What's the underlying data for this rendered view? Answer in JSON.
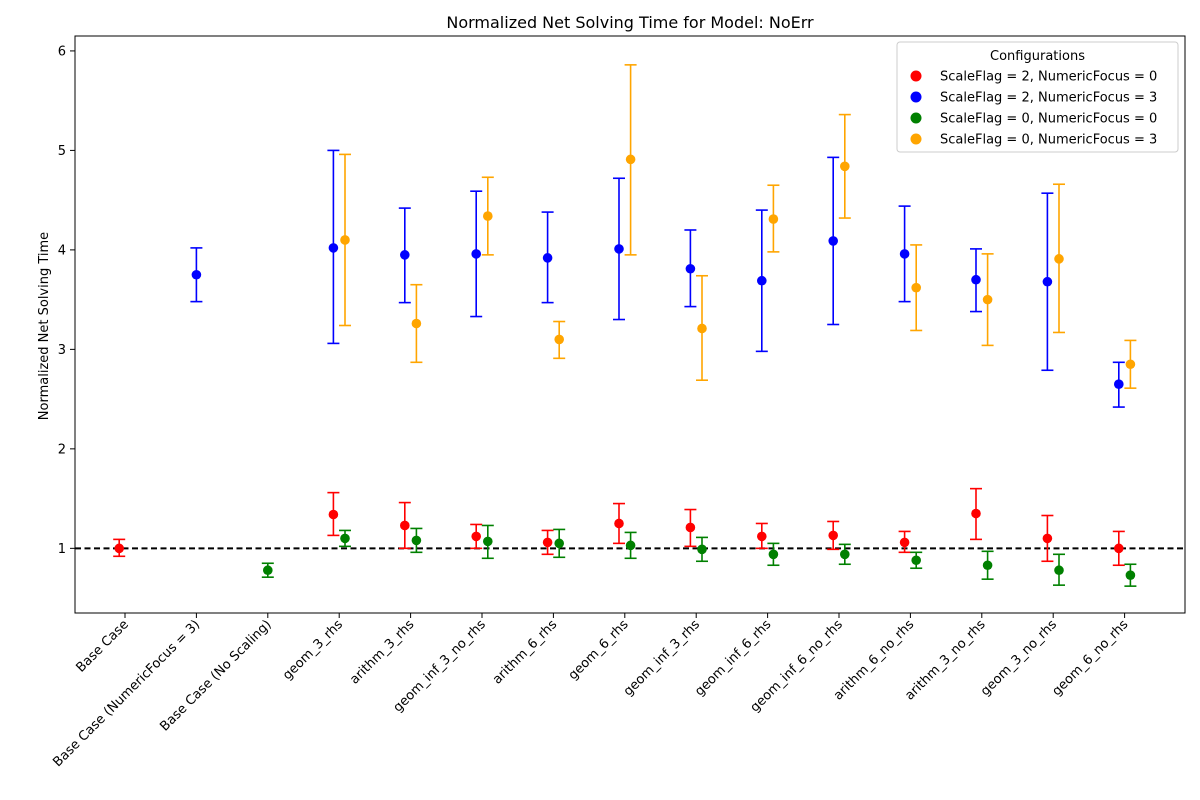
{
  "chart_data": {
    "type": "scatter",
    "title": "Normalized Net Solving Time for Model: NoErr",
    "xlabel": "",
    "ylabel": "Normalized Net Solving Time",
    "ylim": [
      0.35,
      6.15
    ],
    "yticks": [
      1,
      2,
      3,
      4,
      5,
      6
    ],
    "baseline": 1.0,
    "categories": [
      "Base Case",
      "Base Case (NumericFocus = 3)",
      "Base Case (No Scaling)",
      "geom_3_rhs",
      "arithm_3_rhs",
      "geom_inf_3_no_rhs",
      "arithm_6_rhs",
      "geom_6_rhs",
      "geom_inf_3_rhs",
      "geom_inf_6_rhs",
      "geom_inf_6_no_rhs",
      "arithm_6_no_rhs",
      "arithm_3_no_rhs",
      "geom_3_no_rhs",
      "geom_6_no_rhs"
    ],
    "legend": {
      "title": "Configurations",
      "position": "top-right",
      "entries": [
        "ScaleFlag = 2, NumericFocus = 0",
        "ScaleFlag = 2, NumericFocus = 3",
        "ScaleFlag = 0, NumericFocus = 0",
        "ScaleFlag = 0, NumericFocus = 3"
      ]
    },
    "series": [
      {
        "name": "ScaleFlag = 2, NumericFocus = 0",
        "color": "#ff0000",
        "offset": -1,
        "points": [
          {
            "cat": 0,
            "y": 1.0,
            "lo": 0.92,
            "hi": 1.09
          },
          {
            "cat": 3,
            "y": 1.34,
            "lo": 1.13,
            "hi": 1.56
          },
          {
            "cat": 4,
            "y": 1.23,
            "lo": 1.0,
            "hi": 1.46
          },
          {
            "cat": 5,
            "y": 1.12,
            "lo": 1.0,
            "hi": 1.24
          },
          {
            "cat": 6,
            "y": 1.06,
            "lo": 0.94,
            "hi": 1.18
          },
          {
            "cat": 7,
            "y": 1.25,
            "lo": 1.05,
            "hi": 1.45
          },
          {
            "cat": 8,
            "y": 1.21,
            "lo": 1.02,
            "hi": 1.39
          },
          {
            "cat": 9,
            "y": 1.12,
            "lo": 1.0,
            "hi": 1.25
          },
          {
            "cat": 10,
            "y": 1.13,
            "lo": 0.99,
            "hi": 1.27
          },
          {
            "cat": 11,
            "y": 1.06,
            "lo": 0.96,
            "hi": 1.17
          },
          {
            "cat": 12,
            "y": 1.35,
            "lo": 1.09,
            "hi": 1.6
          },
          {
            "cat": 13,
            "y": 1.1,
            "lo": 0.87,
            "hi": 1.33
          },
          {
            "cat": 14,
            "y": 1.0,
            "lo": 0.83,
            "hi": 1.17
          }
        ]
      },
      {
        "name": "ScaleFlag = 2, NumericFocus = 3",
        "color": "#0000ff",
        "offset": -1,
        "points": [
          {
            "cat": 1,
            "y": 3.75,
            "lo": 3.48,
            "hi": 4.02,
            "offset": 0
          },
          {
            "cat": 3,
            "y": 4.02,
            "lo": 3.06,
            "hi": 5.0
          },
          {
            "cat": 4,
            "y": 3.95,
            "lo": 3.47,
            "hi": 4.42
          },
          {
            "cat": 5,
            "y": 3.96,
            "lo": 3.33,
            "hi": 4.59
          },
          {
            "cat": 6,
            "y": 3.92,
            "lo": 3.47,
            "hi": 4.38
          },
          {
            "cat": 7,
            "y": 4.01,
            "lo": 3.3,
            "hi": 4.72
          },
          {
            "cat": 8,
            "y": 3.81,
            "lo": 3.43,
            "hi": 4.2
          },
          {
            "cat": 9,
            "y": 3.69,
            "lo": 2.98,
            "hi": 4.4
          },
          {
            "cat": 10,
            "y": 4.09,
            "lo": 3.25,
            "hi": 4.93
          },
          {
            "cat": 11,
            "y": 3.96,
            "lo": 3.48,
            "hi": 4.44
          },
          {
            "cat": 12,
            "y": 3.7,
            "lo": 3.38,
            "hi": 4.01
          },
          {
            "cat": 13,
            "y": 3.68,
            "lo": 2.79,
            "hi": 4.57
          },
          {
            "cat": 14,
            "y": 2.65,
            "lo": 2.42,
            "hi": 2.87
          }
        ]
      },
      {
        "name": "ScaleFlag = 0, NumericFocus = 0",
        "color": "#008000",
        "offset": 1,
        "points": [
          {
            "cat": 2,
            "y": 0.78,
            "lo": 0.71,
            "hi": 0.85,
            "offset": 0
          },
          {
            "cat": 3,
            "y": 1.1,
            "lo": 1.02,
            "hi": 1.18
          },
          {
            "cat": 4,
            "y": 1.08,
            "lo": 0.96,
            "hi": 1.2
          },
          {
            "cat": 5,
            "y": 1.07,
            "lo": 0.9,
            "hi": 1.23
          },
          {
            "cat": 6,
            "y": 1.05,
            "lo": 0.91,
            "hi": 1.19
          },
          {
            "cat": 7,
            "y": 1.03,
            "lo": 0.9,
            "hi": 1.16
          },
          {
            "cat": 8,
            "y": 0.99,
            "lo": 0.87,
            "hi": 1.11
          },
          {
            "cat": 9,
            "y": 0.94,
            "lo": 0.83,
            "hi": 1.05
          },
          {
            "cat": 10,
            "y": 0.94,
            "lo": 0.84,
            "hi": 1.04
          },
          {
            "cat": 11,
            "y": 0.88,
            "lo": 0.8,
            "hi": 0.96
          },
          {
            "cat": 12,
            "y": 0.83,
            "lo": 0.69,
            "hi": 0.97
          },
          {
            "cat": 13,
            "y": 0.78,
            "lo": 0.63,
            "hi": 0.94
          },
          {
            "cat": 14,
            "y": 0.73,
            "lo": 0.62,
            "hi": 0.84
          }
        ]
      },
      {
        "name": "ScaleFlag = 0, NumericFocus = 3",
        "color": "#ffa500",
        "offset": 1,
        "points": [
          {
            "cat": 3,
            "y": 4.1,
            "lo": 3.24,
            "hi": 4.96
          },
          {
            "cat": 4,
            "y": 3.26,
            "lo": 2.87,
            "hi": 3.65
          },
          {
            "cat": 5,
            "y": 4.34,
            "lo": 3.95,
            "hi": 4.73
          },
          {
            "cat": 6,
            "y": 3.1,
            "lo": 2.91,
            "hi": 3.28
          },
          {
            "cat": 7,
            "y": 4.91,
            "lo": 3.95,
            "hi": 5.86
          },
          {
            "cat": 8,
            "y": 3.21,
            "lo": 2.69,
            "hi": 3.74
          },
          {
            "cat": 9,
            "y": 4.31,
            "lo": 3.98,
            "hi": 4.65
          },
          {
            "cat": 10,
            "y": 4.84,
            "lo": 4.32,
            "hi": 5.36
          },
          {
            "cat": 11,
            "y": 3.62,
            "lo": 3.19,
            "hi": 4.05
          },
          {
            "cat": 12,
            "y": 3.5,
            "lo": 3.04,
            "hi": 3.96
          },
          {
            "cat": 13,
            "y": 3.91,
            "lo": 3.17,
            "hi": 4.66
          },
          {
            "cat": 14,
            "y": 2.85,
            "lo": 2.61,
            "hi": 3.09
          }
        ]
      }
    ]
  }
}
